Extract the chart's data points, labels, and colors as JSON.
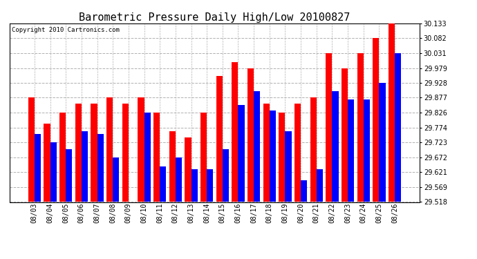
{
  "title": "Barometric Pressure Daily High/Low 20100827",
  "copyright": "Copyright 2010 Cartronics.com",
  "dates": [
    "08/03",
    "08/04",
    "08/05",
    "08/06",
    "08/07",
    "08/08",
    "08/09",
    "08/10",
    "08/11",
    "08/12",
    "08/13",
    "08/14",
    "08/15",
    "08/16",
    "08/17",
    "08/18",
    "08/19",
    "08/20",
    "08/21",
    "08/22",
    "08/23",
    "08/24",
    "08/25",
    "08/26"
  ],
  "highs": [
    29.877,
    29.787,
    29.826,
    29.856,
    29.856,
    29.877,
    29.856,
    29.877,
    29.826,
    29.762,
    29.74,
    29.826,
    29.951,
    30.0,
    29.979,
    29.856,
    29.826,
    29.856,
    29.877,
    30.031,
    29.979,
    30.031,
    30.082,
    30.133
  ],
  "lows": [
    29.752,
    29.723,
    29.7,
    29.762,
    29.752,
    29.672,
    29.518,
    29.826,
    29.64,
    29.672,
    29.63,
    29.63,
    29.7,
    29.852,
    29.9,
    29.832,
    29.762,
    29.592,
    29.63,
    29.9,
    29.872,
    29.87,
    29.928,
    30.031
  ],
  "high_color": "#ff0000",
  "low_color": "#0000ff",
  "background_color": "#ffffff",
  "plot_background": "#ffffff",
  "grid_color": "#b0b0b0",
  "ylim_min": 29.518,
  "ylim_max": 30.133,
  "yticks": [
    29.518,
    29.569,
    29.621,
    29.672,
    29.723,
    29.774,
    29.826,
    29.877,
    29.928,
    29.979,
    30.031,
    30.082,
    30.133
  ],
  "bar_width": 0.4,
  "title_fontsize": 11,
  "tick_fontsize": 7,
  "copyright_fontsize": 6.5
}
